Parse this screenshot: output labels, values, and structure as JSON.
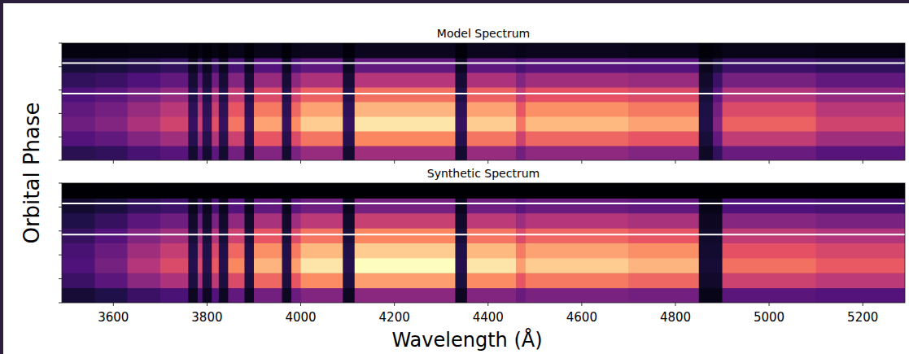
{
  "chart_data": [
    {
      "type": "heatmap",
      "title": "Model Spectrum",
      "ylabel": "Orbital Phase",
      "xlim": [
        3490,
        5290
      ],
      "xticks": [
        3600,
        3800,
        4000,
        4200,
        4400,
        4600,
        4800,
        5000,
        5200
      ],
      "ylim": [
        0,
        1
      ],
      "yticks": [
        0,
        0.2,
        0.4,
        0.6,
        0.8,
        1
      ],
      "tick_labels": false,
      "color_range": [
        0,
        100
      ],
      "phase_lines": [
        0.57,
        0.83
      ],
      "x_edges": [
        3490,
        3560,
        3630,
        3700,
        3760,
        3780,
        3790,
        3810,
        3825,
        3845,
        3880,
        3900,
        3960,
        3980,
        4000,
        4090,
        4115,
        4330,
        4355,
        4460,
        4480,
        4700,
        4850,
        4880,
        4900,
        5100,
        5290
      ],
      "y_edges": [
        0,
        0.125,
        0.25,
        0.375,
        0.5,
        0.625,
        0.75,
        0.875,
        1
      ],
      "cells": [
        [
          16,
          18,
          23,
          27,
          9,
          27,
          9,
          29,
          9,
          34,
          9,
          38,
          9,
          36,
          43,
          9,
          45,
          9,
          43,
          34,
          41,
          38,
          7,
          18,
          32,
          27
        ],
        [
          26,
          30,
          38,
          45,
          15,
          45,
          15,
          49,
          15,
          56,
          15,
          64,
          15,
          60,
          71,
          15,
          75,
          15,
          71,
          56,
          68,
          64,
          11,
          30,
          53,
          45
        ],
        [
          33,
          38,
          48,
          57,
          19,
          57,
          19,
          62,
          19,
          71,
          19,
          81,
          19,
          76,
          90,
          19,
          95,
          19,
          90,
          71,
          86,
          81,
          14,
          38,
          67,
          57
        ],
        [
          30,
          34,
          43,
          51,
          17,
          51,
          17,
          55,
          17,
          64,
          17,
          72,
          17,
          68,
          81,
          17,
          85,
          17,
          81,
          64,
          77,
          72,
          13,
          34,
          60,
          51
        ],
        [
          25,
          28,
          35,
          42,
          14,
          42,
          14,
          46,
          14,
          53,
          14,
          60,
          14,
          56,
          67,
          14,
          70,
          14,
          67,
          53,
          63,
          60,
          11,
          28,
          49,
          42
        ],
        [
          18,
          20,
          25,
          30,
          10,
          30,
          10,
          33,
          10,
          38,
          10,
          43,
          10,
          40,
          48,
          10,
          50,
          10,
          48,
          38,
          45,
          43,
          8,
          20,
          35,
          30
        ],
        [
          11,
          12,
          15,
          18,
          6,
          18,
          6,
          20,
          6,
          23,
          6,
          26,
          6,
          24,
          29,
          6,
          30,
          6,
          29,
          23,
          27,
          26,
          5,
          12,
          21,
          18
        ],
        [
          2,
          2,
          3,
          3,
          1,
          3,
          1,
          3,
          1,
          4,
          1,
          4,
          1,
          4,
          5,
          1,
          5,
          1,
          5,
          4,
          5,
          4,
          1,
          2,
          4,
          3
        ]
      ]
    },
    {
      "type": "heatmap",
      "title": "Synthetic Spectrum",
      "xlabel": "Wavelength (Å)",
      "xlim": [
        3490,
        5290
      ],
      "xticks": [
        3600,
        3800,
        4000,
        4200,
        4400,
        4600,
        4800,
        5000,
        5200
      ],
      "ylim": [
        0,
        1
      ],
      "yticks": [
        0,
        0.2,
        0.4,
        0.6,
        0.8,
        1
      ],
      "tick_labels": "x",
      "color_range": [
        0,
        100
      ],
      "phase_lines": [
        0.57,
        0.83
      ],
      "x_edges": [
        3490,
        3560,
        3630,
        3700,
        3760,
        3780,
        3790,
        3810,
        3825,
        3845,
        3880,
        3900,
        3960,
        3980,
        4000,
        4090,
        4115,
        4330,
        4355,
        4460,
        4480,
        4700,
        4850,
        4880,
        4900,
        5100,
        5290
      ],
      "y_edges": [
        0,
        0.125,
        0.25,
        0.375,
        0.5,
        0.625,
        0.75,
        0.875,
        1
      ],
      "cells": [
        [
          10,
          14,
          20,
          24,
          6,
          24,
          6,
          26,
          6,
          30,
          6,
          34,
          6,
          32,
          38,
          6,
          40,
          6,
          38,
          32,
          36,
          34,
          4,
          4,
          28,
          26
        ],
        [
          20,
          28,
          40,
          48,
          12,
          48,
          12,
          52,
          12,
          60,
          12,
          68,
          12,
          64,
          76,
          12,
          80,
          12,
          76,
          64,
          72,
          68,
          8,
          8,
          56,
          52
        ],
        [
          25,
          35,
          50,
          60,
          15,
          60,
          15,
          65,
          15,
          75,
          15,
          85,
          15,
          80,
          95,
          15,
          100,
          15,
          95,
          80,
          90,
          85,
          10,
          10,
          70,
          65
        ],
        [
          23,
          32,
          45,
          54,
          14,
          54,
          14,
          59,
          14,
          68,
          14,
          77,
          14,
          72,
          86,
          14,
          90,
          14,
          86,
          72,
          81,
          77,
          9,
          9,
          63,
          59
        ],
        [
          19,
          26,
          38,
          45,
          11,
          45,
          11,
          49,
          11,
          56,
          11,
          64,
          11,
          60,
          71,
          11,
          75,
          11,
          71,
          60,
          68,
          64,
          8,
          8,
          53,
          49
        ],
        [
          14,
          19,
          28,
          33,
          8,
          33,
          8,
          36,
          8,
          41,
          8,
          47,
          8,
          44,
          52,
          8,
          55,
          8,
          52,
          44,
          50,
          47,
          6,
          6,
          39,
          36
        ],
        [
          9,
          12,
          18,
          21,
          5,
          21,
          5,
          23,
          5,
          26,
          5,
          30,
          5,
          28,
          33,
          5,
          35,
          5,
          33,
          28,
          32,
          30,
          4,
          4,
          25,
          23
        ],
        [
          0,
          0,
          0,
          0,
          0,
          0,
          0,
          0,
          0,
          0,
          0,
          0,
          0,
          0,
          0,
          0,
          0,
          0,
          0,
          0,
          0,
          0,
          0,
          0,
          0,
          0
        ]
      ]
    }
  ]
}
